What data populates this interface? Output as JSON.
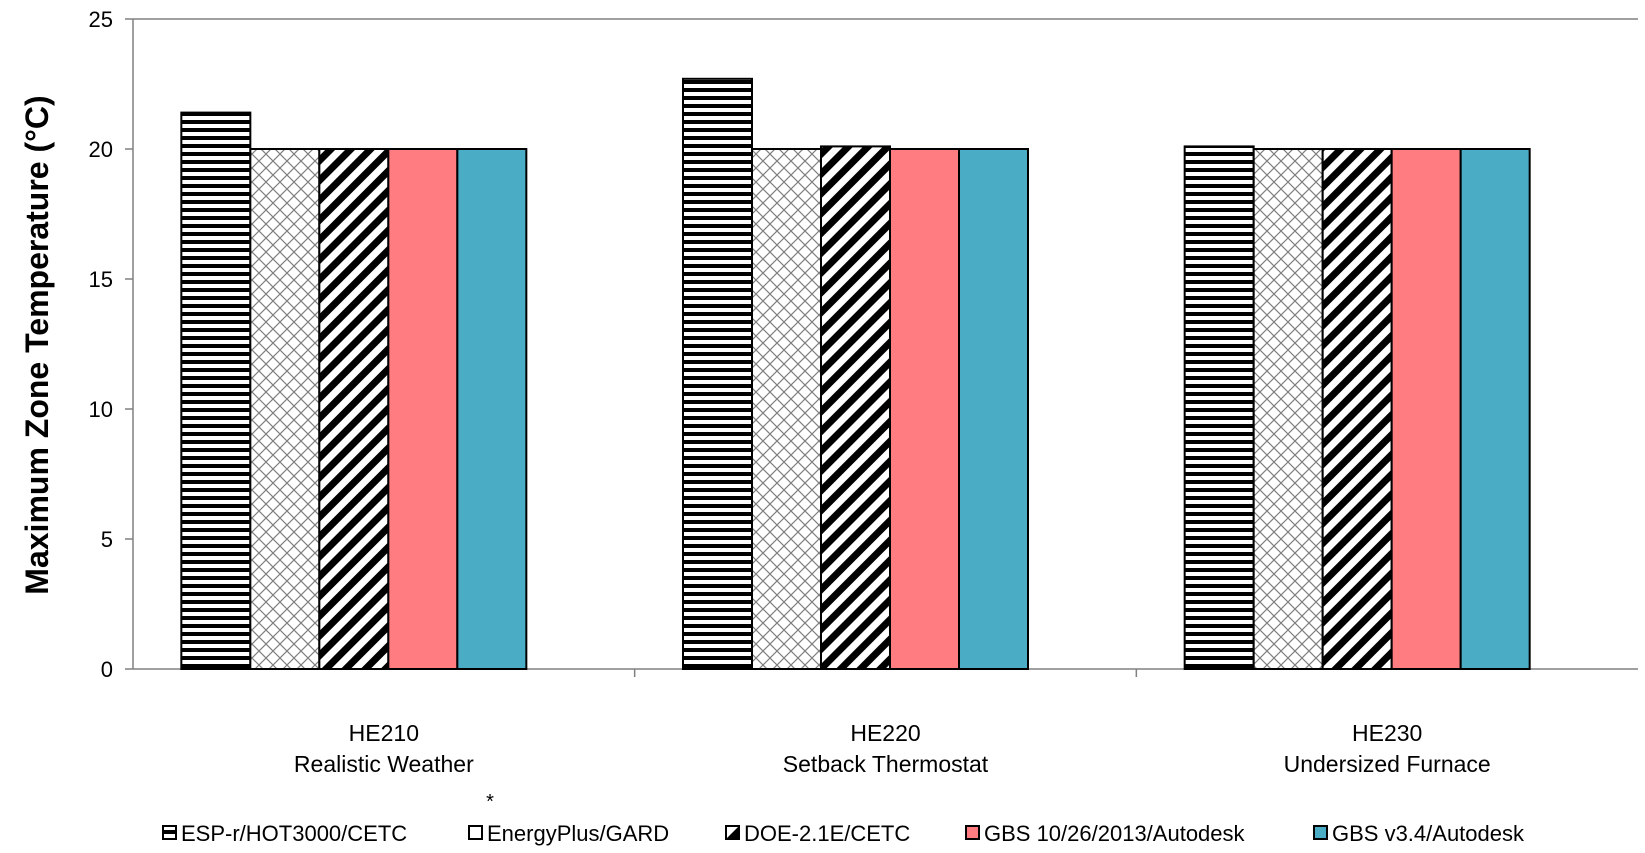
{
  "chart_data": {
    "type": "bar",
    "title": "",
    "xlabel": "",
    "ylabel": "Maximum Zone Temperature (°C)",
    "ylim": [
      0,
      25
    ],
    "yticks": [
      0,
      5,
      10,
      15,
      20,
      25
    ],
    "categories": [
      {
        "code": "HE210",
        "name": "Realistic Weather"
      },
      {
        "code": "HE220",
        "name": "Setback Thermostat"
      },
      {
        "code": "HE230",
        "name": "Undersized Furnace"
      }
    ],
    "series": [
      {
        "name": "ESP-r/HOT3000/CETC",
        "pattern": "horizontal-stripes",
        "color": "#000000",
        "values": [
          21.4,
          22.7,
          20.1
        ]
      },
      {
        "name": "EnergyPlus/GARD",
        "pattern": "crosshatch",
        "color": "#7f7f7f",
        "values": [
          20.0,
          20.0,
          20.0
        ]
      },
      {
        "name": "DOE-2.1E/CETC",
        "pattern": "diagonal-stripes",
        "color": "#000000",
        "values": [
          20.0,
          20.1,
          20.0
        ]
      },
      {
        "name": "GBS 10/26/2013/Autodesk",
        "pattern": "solid",
        "color": "#ff7c80",
        "values": [
          20.0,
          20.0,
          20.0
        ]
      },
      {
        "name": "GBS v3.4/Autodesk",
        "pattern": "solid",
        "color": "#4bacc6",
        "values": [
          20.0,
          20.0,
          20.0
        ]
      }
    ],
    "note": "*",
    "grid": false,
    "legend_position": "bottom"
  }
}
